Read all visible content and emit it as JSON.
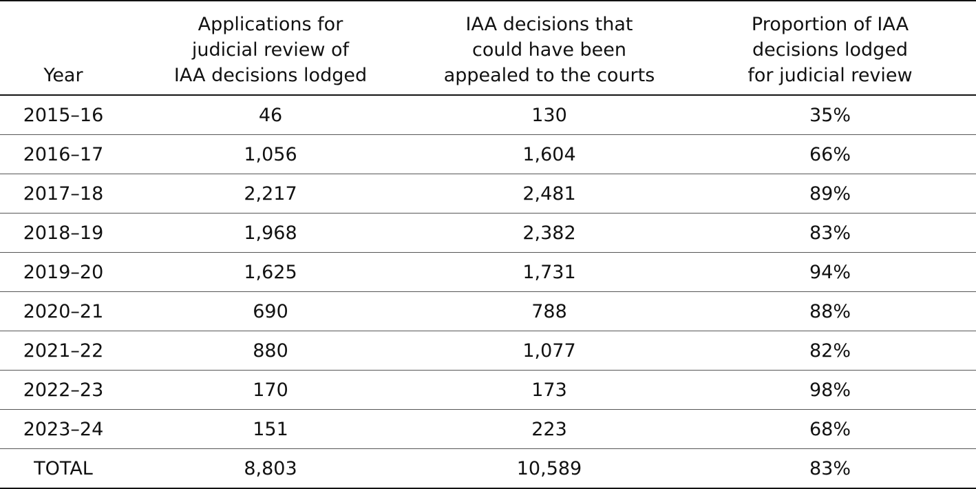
{
  "table": {
    "headers": {
      "year": [
        "Year"
      ],
      "applications": [
        "Applications for",
        "judicial review of",
        "IAA decisions lodged"
      ],
      "decisions": [
        "IAA decisions that",
        "could have been",
        "appealed to the courts"
      ],
      "proportion": [
        "Proportion of IAA",
        "decisions lodged",
        "for judicial review"
      ]
    },
    "rows": [
      {
        "year": "2015–16",
        "applications": "46",
        "decisions": "130",
        "proportion": "35%"
      },
      {
        "year": "2016–17",
        "applications": "1,056",
        "decisions": "1,604",
        "proportion": "66%"
      },
      {
        "year": "2017–18",
        "applications": "2,217",
        "decisions": "2,481",
        "proportion": "89%"
      },
      {
        "year": "2018–19",
        "applications": "1,968",
        "decisions": "2,382",
        "proportion": "83%"
      },
      {
        "year": "2019–20",
        "applications": "1,625",
        "decisions": "1,731",
        "proportion": "94%"
      },
      {
        "year": "2020–21",
        "applications": "690",
        "decisions": "788",
        "proportion": "88%"
      },
      {
        "year": "2021–22",
        "applications": "880",
        "decisions": "1,077",
        "proportion": "82%"
      },
      {
        "year": "2022–23",
        "applications": "170",
        "decisions": "173",
        "proportion": "98%"
      },
      {
        "year": "2023–24",
        "applications": "151",
        "decisions": "223",
        "proportion": "68%"
      },
      {
        "year": "TOTAL",
        "applications": "8,803",
        "decisions": "10,589",
        "proportion": "83%"
      }
    ]
  }
}
